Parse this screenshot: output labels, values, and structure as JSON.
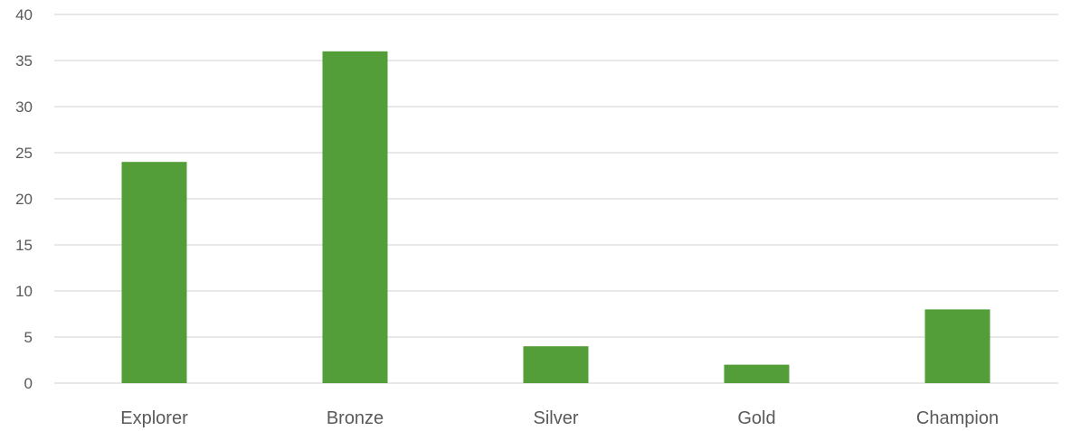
{
  "chart_data": {
    "type": "bar",
    "title": "",
    "xlabel": "",
    "ylabel": "",
    "categories": [
      "Explorer",
      "Bronze",
      "Silver",
      "Gold",
      "Champion"
    ],
    "values": [
      24,
      36,
      4,
      2,
      8
    ],
    "ylim": [
      0,
      40
    ],
    "yticks": [
      0,
      5,
      10,
      15,
      20,
      25,
      30,
      35,
      40
    ],
    "grid": true,
    "legend": "none",
    "colors": {
      "bar": "#549E39",
      "grid": "#D9D9D9",
      "text": "#595959"
    }
  }
}
